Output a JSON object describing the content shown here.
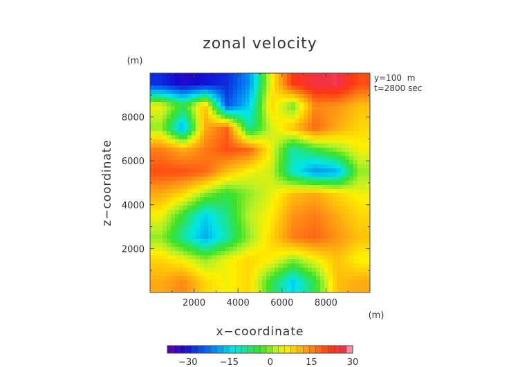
{
  "chart_data": {
    "type": "heatmap",
    "title": "zonal velocity",
    "xlabel": "x−coordinate",
    "ylabel": "z−coordinate",
    "x_unit": "(m)",
    "y_unit": "(m)",
    "annotation_lines": [
      "y=100  m",
      "t=2800 sec"
    ],
    "xlim": [
      0,
      10000
    ],
    "ylim": [
      0,
      10000
    ],
    "xticks": [
      2000,
      4000,
      6000,
      8000
    ],
    "yticks": [
      2000,
      4000,
      6000,
      8000
    ],
    "xtick_labels": [
      "2000",
      "4000",
      "6000",
      "8000"
    ],
    "ytick_labels": [
      "2000",
      "4000",
      "6000",
      "8000"
    ],
    "colorbar": {
      "vmin": -37.5,
      "vmax": 30,
      "ticks": [
        -30,
        -15,
        0,
        15,
        30
      ],
      "tick_labels": [
        "−30",
        "−15",
        "0",
        "15",
        "30"
      ]
    },
    "x_centers": [
      500,
      1500,
      2500,
      3500,
      4500,
      5500,
      6500,
      7500,
      8500,
      9500
    ],
    "z_centers": [
      9500,
      8500,
      7500,
      6500,
      5500,
      4500,
      3500,
      2500,
      1500,
      500
    ],
    "values": [
      [
        -28,
        -32,
        -30,
        -28,
        -20,
        5,
        22,
        26,
        27,
        20
      ],
      [
        5,
        -5,
        10,
        -25,
        -15,
        8,
        -2,
        15,
        14,
        10
      ],
      [
        0,
        -18,
        12,
        18,
        -10,
        3,
        10,
        18,
        12,
        8
      ],
      [
        16,
        12,
        16,
        20,
        18,
        5,
        -10,
        -5,
        0,
        5
      ],
      [
        20,
        20,
        18,
        10,
        5,
        3,
        -12,
        -20,
        -18,
        0
      ],
      [
        12,
        8,
        0,
        -5,
        0,
        4,
        10,
        12,
        8,
        5
      ],
      [
        5,
        -5,
        -15,
        -8,
        2,
        6,
        14,
        16,
        12,
        8
      ],
      [
        0,
        -10,
        -18,
        -10,
        0,
        8,
        16,
        18,
        14,
        10
      ],
      [
        8,
        5,
        0,
        5,
        8,
        6,
        0,
        5,
        10,
        5
      ],
      [
        12,
        15,
        8,
        5,
        8,
        -5,
        -15,
        -5,
        10,
        12
      ]
    ]
  }
}
